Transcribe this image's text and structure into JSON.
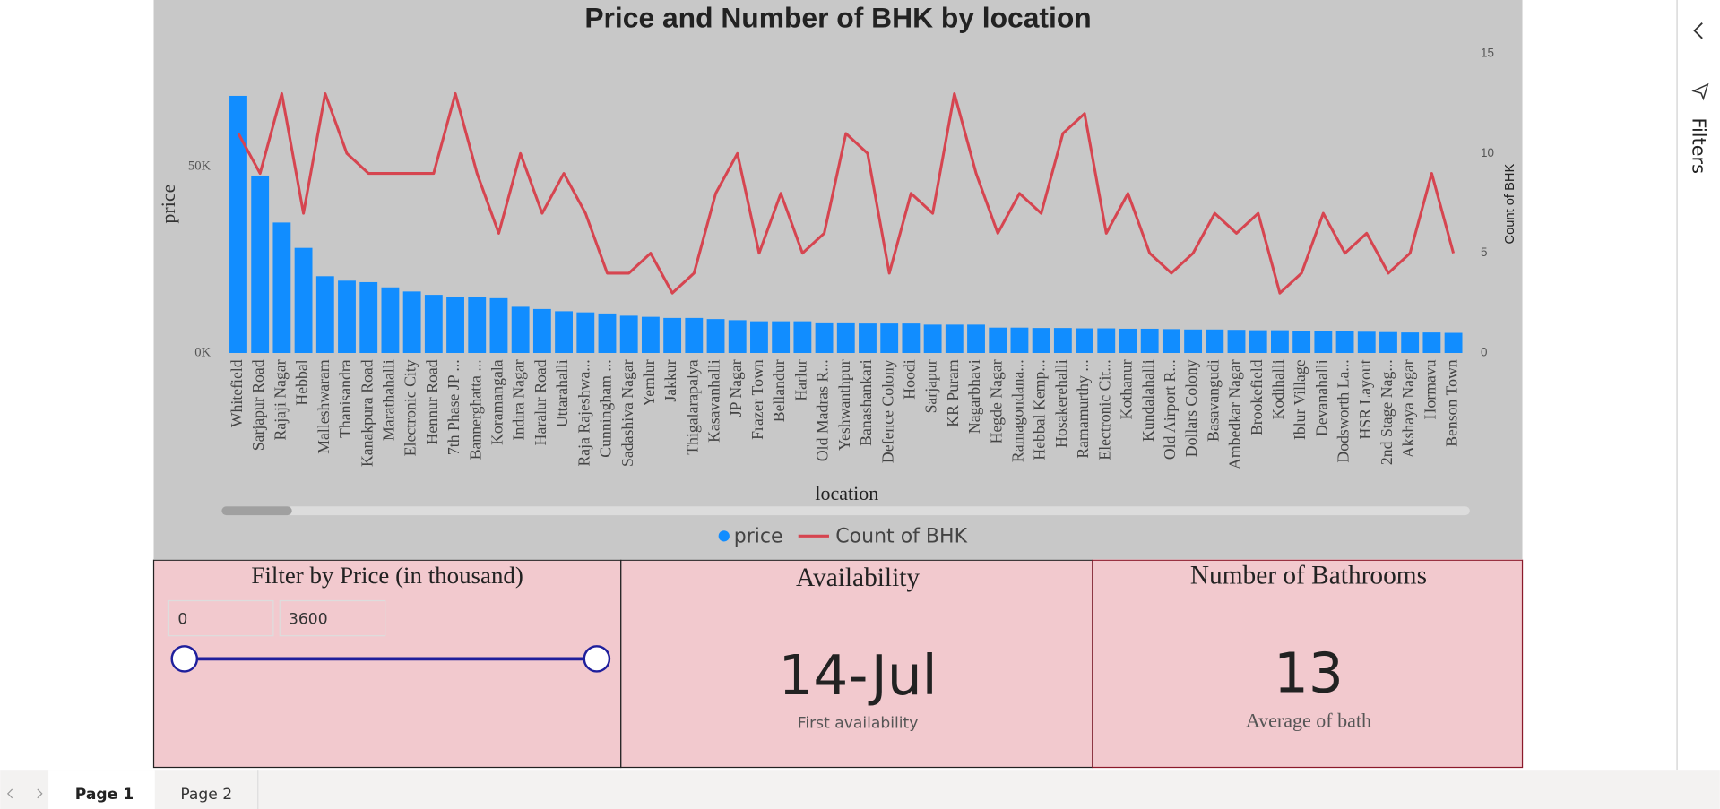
{
  "chart_data": {
    "type": "combo",
    "title": "Price and Number of BHK by location",
    "x_label": "location",
    "y_label": "price",
    "y2_label": "Count of BHK",
    "categories": [
      "Whitefield",
      "Sarjapur Road",
      "Rajaji Nagar",
      "Hebbal",
      "Malleshwaram",
      "Thanisandra",
      "Kanakpura Road",
      "Marathahalli",
      "Electronic City",
      "Hennur Road",
      "7th Phase JP ...",
      "Bannerghatta ...",
      "Koramangala",
      "Indira Nagar",
      "Haralur Road",
      "Uttarahalli",
      "Raja Rajeshwa...",
      "Cunningham ...",
      "Sadashiva Nagar",
      "Yemlur",
      "Jakkur",
      "Thigalarapalya",
      "Kasavanhalli",
      "JP Nagar",
      "Frazer Town",
      "Bellandur",
      "Harlur",
      "Old Madras R...",
      "Yeshwanthpur",
      "Banashankari",
      "Defence Colony",
      "Hoodi",
      "Sarjapur",
      "KR Puram",
      "Nagarbhavi",
      "Hegde Nagar",
      "Ramagondana...",
      "Hebbal Kemp...",
      "Hosakerehalli",
      "Ramamurthy ...",
      "Electronic Cit...",
      "Kothanur",
      "Kundalahalli",
      "Old Airport R...",
      "Dollars Colony",
      "Basavangudi",
      "Ambedkar Nagar",
      "Brookefield",
      "Kodihalli",
      "Iblur Village",
      "Devanahalli",
      "Dodsworth La...",
      "HSR Layout",
      "2nd Stage Nag...",
      "Akshaya Nagar",
      "Hormavu",
      "Benson Town"
    ],
    "series": [
      {
        "name": "price",
        "type": "bar",
        "color": "#118dff",
        "values": [
          69000,
          47600,
          35000,
          28200,
          20600,
          19400,
          19000,
          17600,
          16500,
          15600,
          15000,
          15000,
          14700,
          12400,
          11800,
          11200,
          10900,
          10600,
          10000,
          9700,
          9400,
          9400,
          9100,
          8800,
          8500,
          8500,
          8500,
          8200,
          8200,
          7900,
          7900,
          7900,
          7600,
          7600,
          7600,
          6800,
          6800,
          6700,
          6700,
          6600,
          6600,
          6500,
          6500,
          6400,
          6300,
          6300,
          6200,
          6100,
          6100,
          6000,
          5900,
          5800,
          5700,
          5600,
          5500,
          5500,
          5400
        ]
      },
      {
        "name": "Count of BHK",
        "type": "line",
        "color": "#d64550",
        "axis": "y2",
        "values": [
          11,
          9,
          13,
          7,
          13,
          10,
          9,
          9,
          9,
          9,
          13,
          9,
          6,
          10,
          7,
          9,
          7,
          4,
          4,
          5,
          3,
          4,
          8,
          10,
          5,
          8,
          5,
          6,
          11,
          10,
          4,
          8,
          7,
          13,
          9,
          6,
          8,
          7,
          11,
          12,
          6,
          8,
          5,
          4,
          5,
          7,
          6,
          7,
          3,
          4,
          7,
          5,
          6,
          4,
          5,
          9,
          5
        ]
      }
    ],
    "ylim": [
      0,
      80300
    ],
    "yticks": [
      {
        "value": 0,
        "label": "0K"
      },
      {
        "value": 50000,
        "label": "50K"
      }
    ],
    "y2lim": [
      0,
      15
    ],
    "y2ticks": [
      0,
      5,
      10,
      15
    ],
    "grid": false,
    "legend": "bottom"
  },
  "filter_card": {
    "title": "Filter by Price (in thousand)",
    "min": 0,
    "max": 3600
  },
  "availability_card": {
    "title": "Availability",
    "value": "14-Jul",
    "label": "First availability"
  },
  "bathroom_card": {
    "title": "Number of Bathrooms",
    "value": 13,
    "label": "Average of bath"
  },
  "filters_pane": "Filters",
  "pages": [
    "Page 1",
    "Page 2"
  ]
}
